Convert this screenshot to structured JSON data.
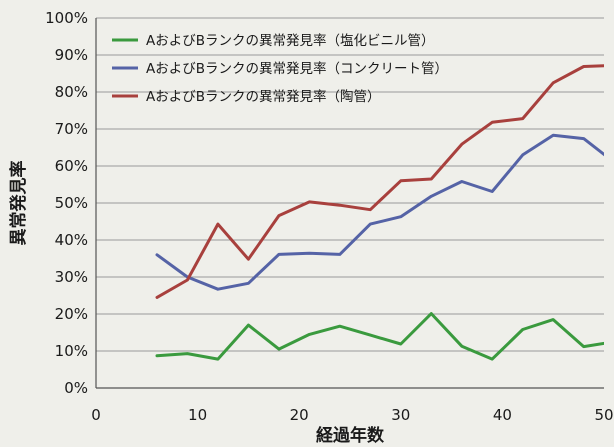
{
  "chart_data": {
    "type": "line",
    "xlabel": "経過年数",
    "ylabel": "異常発見率",
    "xlim": [
      0,
      50
    ],
    "ylim": [
      0,
      100
    ],
    "xticks": [
      0,
      10,
      20,
      30,
      40,
      50
    ],
    "yticks": [
      0,
      10,
      20,
      30,
      40,
      50,
      60,
      70,
      80,
      90,
      100
    ],
    "ytick_labels": [
      "0%",
      "10%",
      "20%",
      "30%",
      "40%",
      "50%",
      "60%",
      "70%",
      "80%",
      "90%",
      "100%"
    ],
    "grid": "horizontal",
    "legend_position": "top-left",
    "series": [
      {
        "name": "AおよびBランクの異常発見率（塩化ビニル管）",
        "color": "#3a9a3e",
        "x": [
          6,
          9,
          12,
          15,
          18,
          21,
          24,
          27,
          30,
          33,
          36,
          39,
          42,
          45,
          48,
          51
        ],
        "y": [
          8.7,
          9.3,
          7.8,
          17.0,
          10.5,
          14.5,
          16.7,
          14.3,
          11.9,
          20.1,
          11.3,
          7.8,
          15.8,
          18.5,
          11.2,
          12.5
        ]
      },
      {
        "name": "AおよびBランクの異常発見率（コンクリート管）",
        "color": "#5563a6",
        "x": [
          6,
          9,
          12,
          15,
          18,
          21,
          24,
          27,
          30,
          33,
          36,
          39,
          42,
          45,
          48,
          51
        ],
        "y": [
          36.0,
          30.0,
          26.7,
          28.3,
          36.1,
          36.4,
          36.1,
          44.3,
          46.3,
          51.8,
          55.8,
          53.1,
          63.0,
          68.3,
          67.4,
          61.0
        ]
      },
      {
        "name": "AおよびBランクの異常発見率（陶管）",
        "color": "#a8403d",
        "x": [
          6,
          9,
          12,
          15,
          18,
          21,
          24,
          27,
          30,
          33,
          36,
          39,
          42,
          45,
          48,
          51
        ],
        "y": [
          24.5,
          29.2,
          44.3,
          34.8,
          46.6,
          50.3,
          49.4,
          48.2,
          56.0,
          56.5,
          65.9,
          71.8,
          72.8,
          82.5,
          86.9,
          87.2
        ]
      }
    ]
  }
}
